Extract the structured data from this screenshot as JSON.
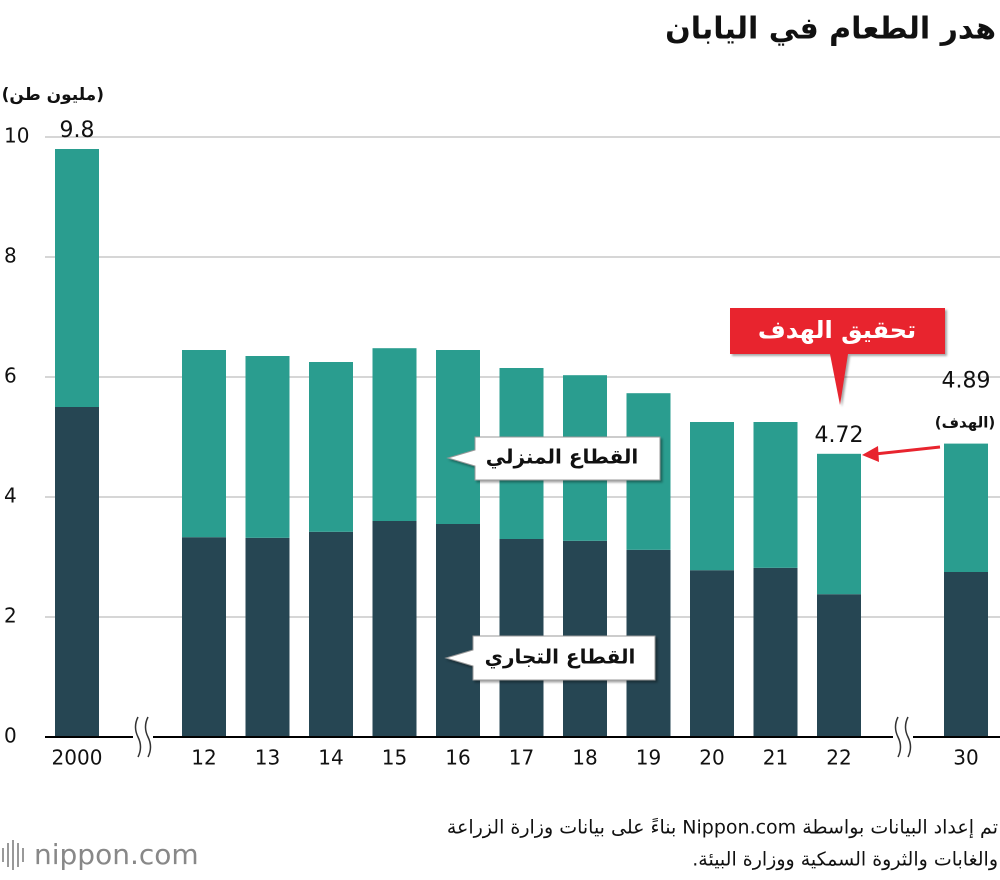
{
  "chart_data": {
    "type": "bar",
    "stacked": true,
    "title": "هدر الطعام في اليابان",
    "y_label": "(مليون طن)",
    "categories": [
      "2000",
      "12",
      "13",
      "14",
      "15",
      "16",
      "17",
      "18",
      "19",
      "20",
      "21",
      "22",
      "30"
    ],
    "series": [
      {
        "name": "القطاع التجاري",
        "color": "#264653",
        "values": [
          5.5,
          3.33,
          3.32,
          3.42,
          3.6,
          3.55,
          3.3,
          3.27,
          3.12,
          2.78,
          2.82,
          2.38,
          2.75
        ]
      },
      {
        "name": "القطاع المنزلي",
        "color": "#2a9d8f",
        "values": [
          4.3,
          3.12,
          3.03,
          2.83,
          2.88,
          2.9,
          2.85,
          2.76,
          2.61,
          2.47,
          2.43,
          2.34,
          2.14
        ]
      }
    ],
    "totals": [
      9.8,
      null,
      null,
      null,
      null,
      null,
      null,
      null,
      null,
      null,
      null,
      4.72,
      4.89
    ],
    "annotations": [
      "(الهدف)",
      "تحقيق الهدف"
    ],
    "ylim": [
      0,
      10
    ],
    "yticks": [
      0,
      2,
      4,
      6,
      8,
      10
    ],
    "grid": true,
    "source": [
      "تم إعداد البيانات بواسطة Nippon.com بناءً على بيانات وزارة الزراعة",
      "والغابات والثروة السمكية ووزارة البيئة."
    ],
    "logo": "nippon.com"
  }
}
